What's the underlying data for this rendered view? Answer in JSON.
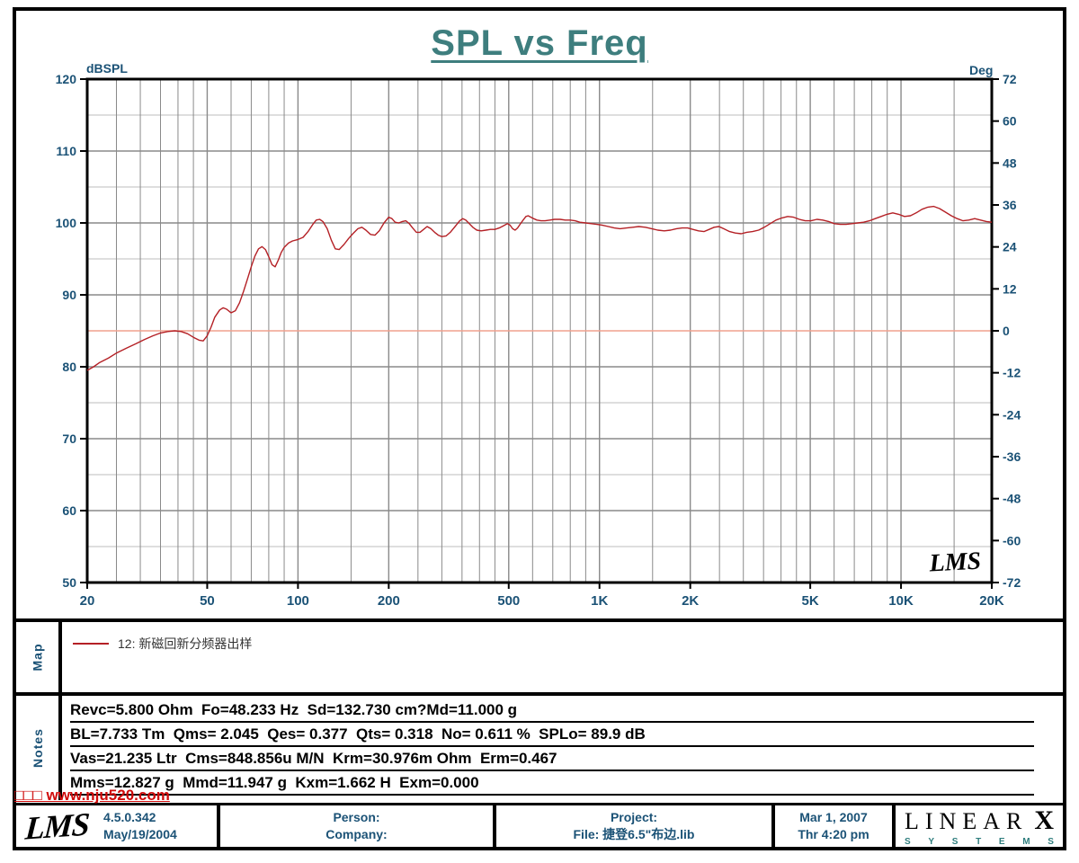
{
  "title": "SPL vs Freq",
  "colors": {
    "title_teal": "#3e7e7e",
    "axis_navy": "#1b5276",
    "curve_red": "#b42025",
    "reference_salmon": "#f1a08e",
    "grid_minor": "#bdbdbd",
    "grid_major": "#8a8a8a",
    "watermark_red": "#cf0a0a"
  },
  "chart_data": {
    "type": "line",
    "title": "SPL vs Freq",
    "x_axis": {
      "scale": "log",
      "min": 20,
      "max": 20000,
      "unit": "Hz",
      "ticks": [
        "20",
        "50",
        "100",
        "200",
        "500",
        "1K",
        "2K",
        "5K",
        "10K",
        "20K"
      ],
      "tick_values": [
        20,
        50,
        100,
        200,
        500,
        1000,
        2000,
        5000,
        10000,
        20000
      ],
      "minor_gridlines": [
        25,
        30,
        35,
        40,
        45,
        60,
        70,
        80,
        90,
        150,
        250,
        300,
        350,
        400,
        450,
        600,
        700,
        800,
        900,
        1500,
        2500,
        3000,
        3500,
        4000,
        4500,
        6000,
        7000,
        8000,
        9000,
        15000
      ]
    },
    "y_left": {
      "label": "dBSPL",
      "min": 50,
      "max": 120,
      "ticks": [
        120,
        110,
        100,
        90,
        80,
        70,
        60,
        50
      ],
      "major_gridlines": [
        110,
        100,
        90,
        80,
        70,
        60
      ],
      "minor_gridlines": [
        115,
        105,
        95,
        85,
        75,
        65,
        55
      ]
    },
    "y_right": {
      "label": "Deg",
      "min": -72,
      "max": 72,
      "ticks": [
        72,
        60,
        48,
        36,
        24,
        12,
        0,
        -12,
        -24,
        -36,
        -48,
        -60,
        -72
      ]
    },
    "reference_line": {
      "axis": "y_right",
      "value": 0
    },
    "inplot_logo": "LMS",
    "series": [
      {
        "name": "12: 新磁回新分频器出样",
        "color": "#b42025",
        "points": [
          [
            20,
            79.5
          ],
          [
            21,
            80.0
          ],
          [
            22,
            80.6
          ],
          [
            23.5,
            81.2
          ],
          [
            25,
            81.9
          ],
          [
            27,
            82.6
          ],
          [
            29,
            83.2
          ],
          [
            31,
            83.8
          ],
          [
            33,
            84.3
          ],
          [
            35,
            84.7
          ],
          [
            37,
            84.9
          ],
          [
            39,
            85.0
          ],
          [
            41,
            84.9
          ],
          [
            43,
            84.6
          ],
          [
            45,
            84.1
          ],
          [
            47,
            83.7
          ],
          [
            48.5,
            83.6
          ],
          [
            50,
            84.3
          ],
          [
            51.5,
            85.5
          ],
          [
            53,
            86.9
          ],
          [
            55,
            87.9
          ],
          [
            56.5,
            88.2
          ],
          [
            58,
            88.0
          ],
          [
            60,
            87.5
          ],
          [
            62,
            87.8
          ],
          [
            64,
            88.9
          ],
          [
            66,
            90.5
          ],
          [
            68,
            92.2
          ],
          [
            70,
            93.9
          ],
          [
            72,
            95.4
          ],
          [
            74,
            96.4
          ],
          [
            76,
            96.7
          ],
          [
            78,
            96.3
          ],
          [
            80,
            95.3
          ],
          [
            82,
            94.2
          ],
          [
            84,
            93.9
          ],
          [
            86,
            94.8
          ],
          [
            88,
            95.9
          ],
          [
            90,
            96.6
          ],
          [
            93,
            97.2
          ],
          [
            96,
            97.5
          ],
          [
            100,
            97.7
          ],
          [
            104,
            98.0
          ],
          [
            108,
            98.8
          ],
          [
            112,
            99.8
          ],
          [
            115,
            100.4
          ],
          [
            118,
            100.5
          ],
          [
            121,
            100.2
          ],
          [
            125,
            99.2
          ],
          [
            129,
            97.6
          ],
          [
            133,
            96.4
          ],
          [
            137,
            96.3
          ],
          [
            142,
            97.0
          ],
          [
            147,
            97.8
          ],
          [
            152,
            98.5
          ],
          [
            158,
            99.2
          ],
          [
            163,
            99.4
          ],
          [
            168,
            99.0
          ],
          [
            174,
            98.4
          ],
          [
            180,
            98.3
          ],
          [
            186,
            98.9
          ],
          [
            193,
            100.0
          ],
          [
            200,
            100.8
          ],
          [
            205,
            100.6
          ],
          [
            210,
            100.1
          ],
          [
            216,
            100.0
          ],
          [
            222,
            100.2
          ],
          [
            228,
            100.3
          ],
          [
            234,
            99.9
          ],
          [
            240,
            99.3
          ],
          [
            247,
            98.7
          ],
          [
            254,
            98.7
          ],
          [
            261,
            99.1
          ],
          [
            268,
            99.5
          ],
          [
            276,
            99.2
          ],
          [
            284,
            98.7
          ],
          [
            292,
            98.3
          ],
          [
            300,
            98.1
          ],
          [
            310,
            98.2
          ],
          [
            320,
            98.7
          ],
          [
            332,
            99.5
          ],
          [
            344,
            100.3
          ],
          [
            352,
            100.6
          ],
          [
            360,
            100.4
          ],
          [
            370,
            99.9
          ],
          [
            380,
            99.4
          ],
          [
            392,
            99.0
          ],
          [
            405,
            98.9
          ],
          [
            420,
            99.0
          ],
          [
            435,
            99.1
          ],
          [
            450,
            99.1
          ],
          [
            465,
            99.3
          ],
          [
            480,
            99.6
          ],
          [
            495,
            99.9
          ],
          [
            505,
            99.7
          ],
          [
            515,
            99.2
          ],
          [
            525,
            99.0
          ],
          [
            535,
            99.3
          ],
          [
            545,
            99.8
          ],
          [
            558,
            100.4
          ],
          [
            570,
            100.9
          ],
          [
            580,
            101.0
          ],
          [
            592,
            100.8
          ],
          [
            605,
            100.6
          ],
          [
            620,
            100.4
          ],
          [
            640,
            100.3
          ],
          [
            660,
            100.3
          ],
          [
            685,
            100.4
          ],
          [
            710,
            100.5
          ],
          [
            740,
            100.5
          ],
          [
            770,
            100.4
          ],
          [
            800,
            100.4
          ],
          [
            830,
            100.3
          ],
          [
            860,
            100.1
          ],
          [
            900,
            100.0
          ],
          [
            940,
            99.9
          ],
          [
            980,
            99.8
          ],
          [
            1020,
            99.7
          ],
          [
            1070,
            99.5
          ],
          [
            1120,
            99.3
          ],
          [
            1170,
            99.2
          ],
          [
            1230,
            99.3
          ],
          [
            1290,
            99.4
          ],
          [
            1350,
            99.5
          ],
          [
            1420,
            99.4
          ],
          [
            1490,
            99.2
          ],
          [
            1560,
            99.0
          ],
          [
            1640,
            98.9
          ],
          [
            1720,
            99.0
          ],
          [
            1800,
            99.2
          ],
          [
            1880,
            99.3
          ],
          [
            1960,
            99.3
          ],
          [
            2040,
            99.1
          ],
          [
            2130,
            98.9
          ],
          [
            2220,
            98.8
          ],
          [
            2310,
            99.1
          ],
          [
            2400,
            99.4
          ],
          [
            2490,
            99.5
          ],
          [
            2580,
            99.2
          ],
          [
            2700,
            98.8
          ],
          [
            2820,
            98.6
          ],
          [
            2950,
            98.5
          ],
          [
            3080,
            98.7
          ],
          [
            3220,
            98.8
          ],
          [
            3370,
            99.0
          ],
          [
            3520,
            99.4
          ],
          [
            3680,
            99.9
          ],
          [
            3850,
            100.4
          ],
          [
            4030,
            100.7
          ],
          [
            4210,
            100.9
          ],
          [
            4400,
            100.8
          ],
          [
            4600,
            100.5
          ],
          [
            4810,
            100.3
          ],
          [
            5030,
            100.3
          ],
          [
            5260,
            100.5
          ],
          [
            5500,
            100.4
          ],
          [
            5750,
            100.2
          ],
          [
            6010,
            99.9
          ],
          [
            6290,
            99.8
          ],
          [
            6570,
            99.8
          ],
          [
            6870,
            99.9
          ],
          [
            7190,
            100.0
          ],
          [
            7510,
            100.1
          ],
          [
            7860,
            100.3
          ],
          [
            8210,
            100.6
          ],
          [
            8590,
            100.9
          ],
          [
            8980,
            101.2
          ],
          [
            9390,
            101.4
          ],
          [
            9820,
            101.2
          ],
          [
            10270,
            100.9
          ],
          [
            10740,
            101.0
          ],
          [
            11230,
            101.4
          ],
          [
            11740,
            101.9
          ],
          [
            12280,
            102.2
          ],
          [
            12840,
            102.3
          ],
          [
            13420,
            102.0
          ],
          [
            14040,
            101.5
          ],
          [
            14680,
            101.0
          ],
          [
            15350,
            100.6
          ],
          [
            16050,
            100.3
          ],
          [
            16780,
            100.4
          ],
          [
            17550,
            100.6
          ],
          [
            18350,
            100.4
          ],
          [
            19190,
            100.2
          ],
          [
            20000,
            100.1
          ]
        ]
      }
    ]
  },
  "map_panel": {
    "label": "Map",
    "legend": [
      {
        "color": "#b42025",
        "label": "12: 新磁回新分频器出样"
      }
    ]
  },
  "notes_panel": {
    "label": "Notes",
    "lines": [
      "Revc=5.800 Ohm  Fo=48.233 Hz  Sd=132.730 cm?Md=11.000 g",
      "BL=7.733 Tm  Qms= 2.045  Qes= 0.377  Qts= 0.318  No= 0.611 %  SPLo= 89.9 dB",
      "Vas=21.235 Ltr  Cms=848.856u M/N  Krm=30.976m Ohm  Erm=0.467",
      "Mms=12.827 g  Mmd=11.947 g  Kxm=1.662 H  Exm=0.000"
    ]
  },
  "watermark": "□□□ www.nju520.com",
  "footer": {
    "logo_text": "LMS",
    "version": "4.5.0.342",
    "version_date": "May/19/2004",
    "person_label": "Person:",
    "company_label": "Company:",
    "project_label": "Project:",
    "file_label": "File: 捷登6.5\"布边.lib",
    "date": "Mar  1, 2007",
    "time": "Thr  4:20 pm",
    "brand_top": "LINEAR",
    "brand_x": "X",
    "brand_sub": "SYSTEMS"
  }
}
